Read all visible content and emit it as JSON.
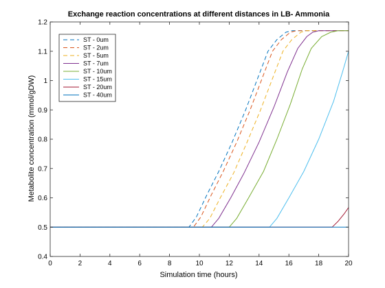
{
  "chart_data": {
    "type": "line",
    "title": "Exchange reaction concentrations at different distances in LB- Ammonia",
    "xlabel": "Simulation time (hours)",
    "ylabel": "Metabolite concentration (mmol/gDW)",
    "xlim": [
      0,
      20
    ],
    "ylim": [
      0.4,
      1.2
    ],
    "xticks": [
      0,
      2,
      4,
      6,
      8,
      10,
      12,
      14,
      16,
      18,
      20
    ],
    "yticks": [
      0.4,
      0.5,
      0.6,
      0.7,
      0.8,
      0.9,
      1.0,
      1.1,
      1.2
    ],
    "ytick_labels": [
      "0.4",
      "0.5",
      "0.6",
      "0.7",
      "0.8",
      "0.9",
      "1",
      "1.1",
      "1.2"
    ],
    "grid": false,
    "legend_position": "top-left",
    "series": [
      {
        "name": "ST - 0um",
        "color": "#0072BD",
        "dash": "dashed",
        "x": [
          0,
          9.3,
          9.8,
          10.5,
          11.3,
          12.2,
          13.1,
          14.0,
          14.6,
          15.2,
          15.8,
          16.2,
          20
        ],
        "y": [
          0.5,
          0.5,
          0.535,
          0.61,
          0.69,
          0.79,
          0.9,
          1.02,
          1.1,
          1.14,
          1.165,
          1.17,
          1.17
        ]
      },
      {
        "name": "ST - 2um",
        "color": "#D95319",
        "dash": "dashed",
        "x": [
          0,
          9.6,
          10.1,
          10.8,
          11.6,
          12.5,
          13.4,
          14.3,
          14.9,
          15.5,
          16.1,
          16.5,
          20
        ],
        "y": [
          0.5,
          0.5,
          0.535,
          0.61,
          0.69,
          0.79,
          0.9,
          1.02,
          1.1,
          1.14,
          1.165,
          1.17,
          1.17
        ]
      },
      {
        "name": "ST - 5um",
        "color": "#EDB120",
        "dash": "dashed",
        "x": [
          0,
          10.2,
          10.7,
          11.4,
          12.3,
          13.2,
          14.1,
          15.0,
          15.6,
          16.2,
          16.8,
          17.2,
          20
        ],
        "y": [
          0.5,
          0.5,
          0.53,
          0.6,
          0.685,
          0.79,
          0.9,
          1.02,
          1.1,
          1.14,
          1.165,
          1.17,
          1.17
        ]
      },
      {
        "name": "ST - 7um",
        "color": "#7E2F8E",
        "dash": "solid",
        "x": [
          0,
          10.8,
          11.3,
          12.1,
          13.0,
          14.0,
          15.0,
          15.9,
          16.6,
          17.2,
          17.6,
          18.0,
          20
        ],
        "y": [
          0.5,
          0.5,
          0.53,
          0.6,
          0.685,
          0.79,
          0.91,
          1.03,
          1.11,
          1.15,
          1.165,
          1.17,
          1.17
        ]
      },
      {
        "name": "ST - 10um",
        "color": "#77AC30",
        "dash": "solid",
        "x": [
          0,
          12.0,
          12.5,
          13.3,
          14.3,
          15.2,
          16.1,
          16.9,
          17.5,
          18.2,
          18.8,
          19.3,
          20
        ],
        "y": [
          0.5,
          0.5,
          0.53,
          0.6,
          0.69,
          0.8,
          0.92,
          1.04,
          1.11,
          1.15,
          1.165,
          1.17,
          1.17
        ]
      },
      {
        "name": "ST - 15um",
        "color": "#4DBEEE",
        "dash": "solid",
        "x": [
          0,
          14.7,
          15.2,
          16.0,
          17.0,
          18.0,
          19.0,
          19.6,
          20.0
        ],
        "y": [
          0.5,
          0.5,
          0.53,
          0.6,
          0.69,
          0.8,
          0.93,
          1.03,
          1.1
        ]
      },
      {
        "name": "ST - 20um",
        "color": "#A2142F",
        "dash": "solid",
        "x": [
          0,
          18.9,
          19.3,
          19.7,
          20.0
        ],
        "y": [
          0.5,
          0.5,
          0.52,
          0.545,
          0.567
        ]
      },
      {
        "name": "ST - 40um",
        "color": "#0072BD",
        "dash": "solid",
        "x": [
          0,
          20
        ],
        "y": [
          0.5,
          0.5
        ]
      }
    ]
  }
}
